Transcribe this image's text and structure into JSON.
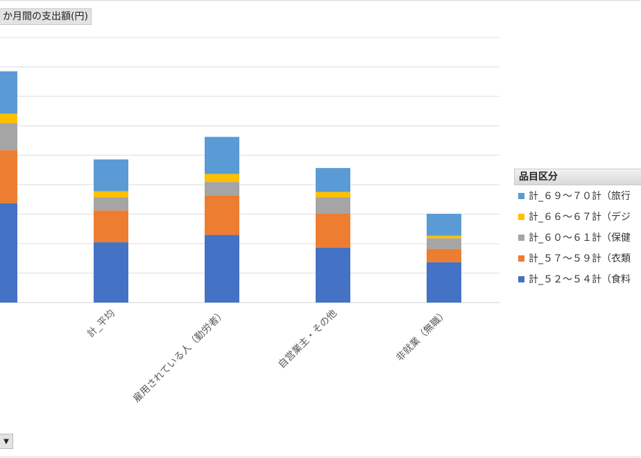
{
  "title": "か月間の支出額(円)",
  "legend_title": "品目区分",
  "chart_data": {
    "type": "bar",
    "stacked": true,
    "categories": [
      "",
      "計_平均",
      "雇用されている人（勤労者）",
      "自営業主・その他",
      "非就業（無職）"
    ],
    "series": [
      {
        "name": "計_５２～５４計（食料",
        "color": "#4472C4",
        "values": [
          150,
          91,
          102,
          83,
          61
        ]
      },
      {
        "name": "計_５７～５９計（衣類",
        "color": "#ED7D31",
        "values": [
          80,
          48,
          60,
          51,
          20
        ]
      },
      {
        "name": "計_６０～６１計（保健",
        "color": "#A5A5A5",
        "values": [
          41,
          20,
          20,
          25,
          16
        ]
      },
      {
        "name": "計_６６～６７計（デジ",
        "color": "#FFC000",
        "values": [
          14,
          9,
          12,
          8,
          4
        ]
      },
      {
        "name": "計_６９～７０計（旅行",
        "color": "#5B9BD5",
        "values": [
          64,
          48,
          56,
          36,
          33
        ]
      }
    ],
    "ylim": [
      0,
      400
    ],
    "grid": true,
    "legend_position": "right"
  },
  "icons": {
    "filter": "dropdown-arrow-icon"
  }
}
